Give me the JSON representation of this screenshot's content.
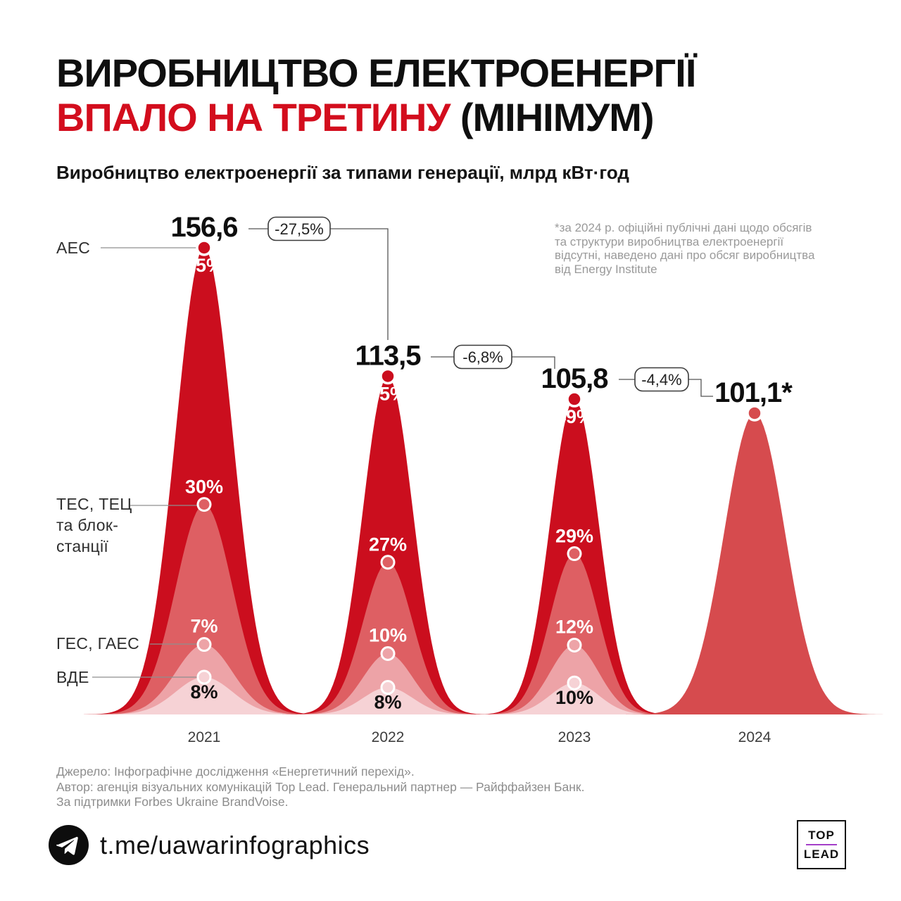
{
  "header": {
    "title_line1": "ВИРОБНИЦТВО ЕЛЕКТРОЕНЕРГІЇ",
    "title_line2_red": "ВПАЛО НА ТРЕТИНУ",
    "title_line2_black": " (МІНІМУМ)",
    "subtitle": "Виробництво електроенергії за типами генерації, млрд кВт·год"
  },
  "note": {
    "lines": [
      "*за 2024 р. офіційні публічні дані щодо обсягів",
      "та структури виробництва електроенергії",
      "відсутні, наведено дані про обсяг виробництва",
      "від Energy Institute"
    ]
  },
  "chart_data": {
    "type": "area",
    "title": "Виробництво електроенергії за типами генерації, млрд кВт·год",
    "unit": "млрд кВт·год",
    "categories": [
      "2021",
      "2022",
      "2023",
      "2024"
    ],
    "totals_display": [
      "156,6",
      "113,5",
      "105,8",
      "101,1*"
    ],
    "totals_numeric": [
      156.6,
      113.5,
      105.8,
      101.1
    ],
    "changes": [
      "-27,5%",
      "-6,8%",
      "-4,4%"
    ],
    "series": [
      {
        "name": "АЕС",
        "label_lines": [
          "АЕС"
        ],
        "color": "#cb0e1e",
        "pct": [
          55,
          55,
          49,
          null
        ]
      },
      {
        "name": "ТЕС, ТЕЦ та блок-станції",
        "label_lines": [
          "ТЕС, ТЕЦ",
          "та блок-",
          "станції"
        ],
        "color": "#de5f63",
        "pct": [
          30,
          27,
          29,
          null
        ]
      },
      {
        "name": "ГЕС, ГАЕС",
        "label_lines": [
          "ГЕС, ГАЕС"
        ],
        "color": "#eda3a7",
        "pct": [
          7,
          10,
          12,
          null
        ]
      },
      {
        "name": "ВДЕ",
        "label_lines": [
          "ВДЕ"
        ],
        "color": "#f6d2d5",
        "pct": [
          8,
          8,
          10,
          null
        ]
      }
    ],
    "year2024_color": "#d64b4e",
    "note": "*за 2024 р. офіційні публічні дані щодо обсягів та структури виробництва електроенергії відсутні, наведено дані про обсяг виробництва від Energy Institute",
    "legend_position": "left",
    "grid": false
  },
  "footer": {
    "lines": [
      "Джерело: Інфографічне дослідження «Енергетичний перехід».",
      "Автор: агенція візуальних комунікацій Top Lead. Генеральний партнер — Райффайзен Банк.",
      "За підтримки Forbes Ukraine BrandVoise."
    ]
  },
  "bottom": {
    "telegram_handle": "t.me/uawarinfographics",
    "logo_line1": "TOP",
    "logo_line2": "LEAD"
  }
}
